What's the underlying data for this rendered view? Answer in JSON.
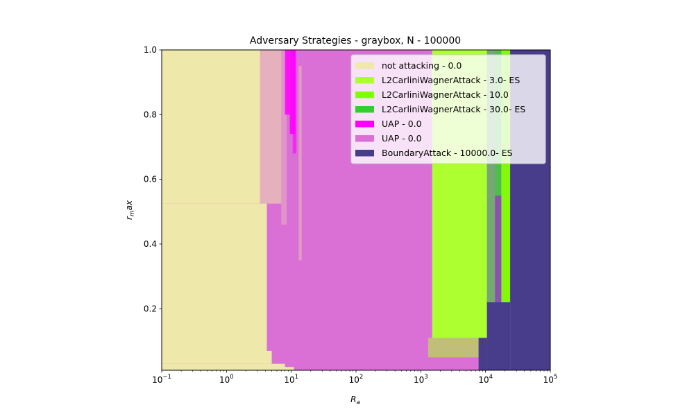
{
  "chart_data": {
    "type": "heatmap",
    "title": "Adversary Strategies - graybox, N - 100000",
    "xlabel_base": "R",
    "xlabel_sub": "a",
    "ylabel_base": "r",
    "ylabel_sub": "m",
    "ylabel_tail": "ax",
    "x_scale": "log",
    "xlim": [
      0.1,
      100000
    ],
    "ylim": [
      0.01,
      1.0
    ],
    "x_ticks": [
      {
        "base": "10",
        "exp": "−1",
        "value": 0.1
      },
      {
        "base": "10",
        "exp": "0",
        "value": 1
      },
      {
        "base": "10",
        "exp": "1",
        "value": 10
      },
      {
        "base": "10",
        "exp": "2",
        "value": 100
      },
      {
        "base": "10",
        "exp": "3",
        "value": 1000
      },
      {
        "base": "10",
        "exp": "4",
        "value": 10000
      },
      {
        "base": "10",
        "exp": "5",
        "value": 100000
      }
    ],
    "y_ticks": [
      {
        "label": "0.2",
        "value": 0.2
      },
      {
        "label": "0.4",
        "value": 0.4
      },
      {
        "label": "0.6",
        "value": 0.6
      },
      {
        "label": "0.8",
        "value": 0.8
      },
      {
        "label": "1.0",
        "value": 1.0
      }
    ],
    "grid": false,
    "legend_position": "top-right",
    "series": [
      {
        "name": "not attacking - 0.0",
        "color": "#EEE8AA"
      },
      {
        "name": "L2CarliniWagnerAttack - 3.0- ES",
        "color": "#ADFF2F"
      },
      {
        "name": "L2CarliniWagnerAttack - 10.0",
        "color": "#7FFF00"
      },
      {
        "name": "L2CarliniWagnerAttack - 30.0- ES",
        "color": "#32CD32"
      },
      {
        "name": "UAP - 0.0",
        "color": "#FF00FF"
      },
      {
        "name": "UAP - 0.0",
        "color": "#DA70D6"
      },
      {
        "name": "BoundaryAttack - 10000.0- ES",
        "color": "#483D8B"
      }
    ],
    "regions": [
      {
        "series": 5,
        "x": [
          0.1,
          100000
        ],
        "y": [
          0.01,
          1.0
        ],
        "opacity": 1
      },
      {
        "series": 0,
        "x": [
          0.1,
          3.3
        ],
        "y": [
          0.525,
          1.0
        ],
        "opacity": 1
      },
      {
        "series": 0,
        "x": [
          3.3,
          7.0
        ],
        "y": [
          0.525,
          1.0
        ],
        "opacity": 0.55
      },
      {
        "series": 0,
        "x": [
          0.1,
          4.2
        ],
        "y": [
          0.07,
          0.525
        ],
        "opacity": 1
      },
      {
        "series": 0,
        "x": [
          0.1,
          5.0
        ],
        "y": [
          0.03,
          0.07
        ],
        "opacity": 1
      },
      {
        "series": 0,
        "x": [
          0.1,
          8.0
        ],
        "y": [
          0.01,
          0.03
        ],
        "opacity": 1
      },
      {
        "series": 0,
        "x": [
          0.1,
          11.0
        ],
        "y": [
          0.01,
          0.02
        ],
        "opacity": 1
      },
      {
        "series": 0,
        "x": [
          7.0,
          8.5
        ],
        "y": [
          0.46,
          1.0
        ],
        "opacity": 0.3
      },
      {
        "series": 4,
        "x": [
          8.0,
          9.5
        ],
        "y": [
          0.8,
          1.0
        ],
        "opacity": 0.85
      },
      {
        "series": 4,
        "x": [
          9.5,
          11.5
        ],
        "y": [
          0.74,
          1.0
        ],
        "opacity": 0.9
      },
      {
        "series": 4,
        "x": [
          10.5,
          12.0
        ],
        "y": [
          0.68,
          1.0
        ],
        "opacity": 0.6
      },
      {
        "series": 0,
        "x": [
          13.0,
          14.5
        ],
        "y": [
          0.35,
          0.95
        ],
        "opacity": 0.35
      },
      {
        "series": 1,
        "x": [
          1500,
          10500
        ],
        "y": [
          0.11,
          1.0
        ],
        "opacity": 1
      },
      {
        "series": 1,
        "x": [
          1300,
          8000
        ],
        "y": [
          0.05,
          0.11
        ],
        "opacity": 0.55
      },
      {
        "series": 3,
        "x": [
          10500,
          14000
        ],
        "y": [
          0.22,
          1.0
        ],
        "opacity": 0.6
      },
      {
        "series": 3,
        "x": [
          14000,
          17500
        ],
        "y": [
          0.55,
          1.0
        ],
        "opacity": 0.85
      },
      {
        "series": 2,
        "x": [
          17500,
          24000
        ],
        "y": [
          0.22,
          1.0
        ],
        "opacity": 0.95
      },
      {
        "series": 6,
        "x": [
          24000,
          100000
        ],
        "y": [
          0.01,
          1.0
        ],
        "opacity": 1
      },
      {
        "series": 6,
        "x": [
          10500,
          24000
        ],
        "y": [
          0.01,
          0.22
        ],
        "opacity": 1
      },
      {
        "series": 6,
        "x": [
          7800,
          10500
        ],
        "y": [
          0.01,
          0.11
        ],
        "opacity": 1
      },
      {
        "series": 6,
        "x": [
          14000,
          17500
        ],
        "y": [
          0.22,
          0.55
        ],
        "opacity": 0.55
      }
    ]
  }
}
